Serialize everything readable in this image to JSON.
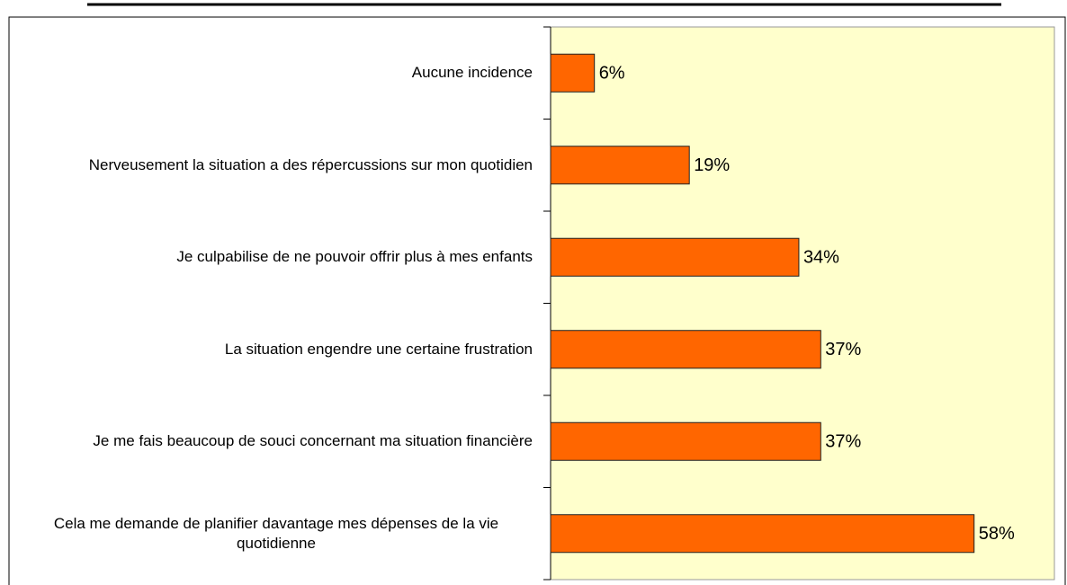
{
  "chart_data": {
    "type": "bar",
    "orientation": "horizontal",
    "categories": [
      "Aucune incidence",
      "Nerveusement la situation a des répercussions sur mon quotidien",
      "Je culpabilise de ne pouvoir offrir plus à mes enfants",
      "La situation engendre une certaine frustration",
      "Je me fais beaucoup de souci concernant ma situation financière",
      "Cela me demande de planifier davantage mes dépenses de la vie quotidienne"
    ],
    "values": [
      6,
      19,
      34,
      37,
      37,
      58
    ],
    "value_labels": [
      "6%",
      "19%",
      "34%",
      "37%",
      "37%",
      "58%"
    ],
    "color": "#ff6600",
    "plot_background": "#ffffcc",
    "xlim": [
      0,
      69
    ]
  }
}
